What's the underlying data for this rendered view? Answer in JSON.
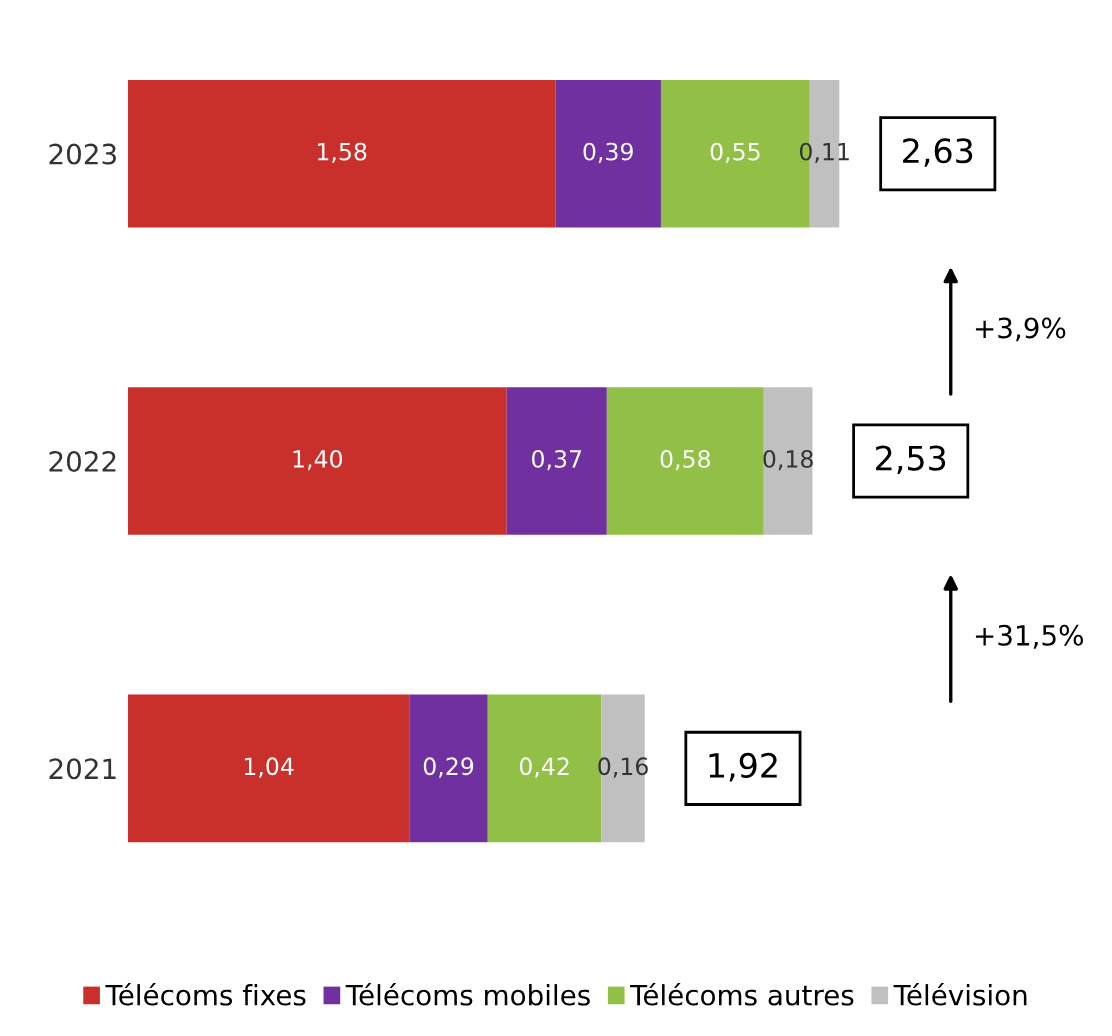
{
  "chart_data": {
    "type": "bar",
    "orientation": "horizontal",
    "stacked": true,
    "categories": [
      "2023",
      "2022",
      "2021"
    ],
    "series": [
      {
        "name": "Télécoms fixes",
        "color": "#c9302c",
        "values": [
          1.58,
          1.4,
          1.04
        ],
        "value_labels": [
          "1,58",
          "1,40",
          "1,04"
        ]
      },
      {
        "name": "Télécoms mobiles",
        "color": "#7030a0",
        "values": [
          0.39,
          0.37,
          0.29
        ],
        "value_labels": [
          "0,39",
          "0,37",
          "0,29"
        ]
      },
      {
        "name": "Télécoms autres",
        "color": "#92c047",
        "values": [
          0.55,
          0.58,
          0.42
        ],
        "value_labels": [
          "0,55",
          "0,58",
          "0,42"
        ]
      },
      {
        "name": "Télévision",
        "color": "#c0c0c0",
        "values": [
          0.11,
          0.18,
          0.16
        ],
        "value_labels": [
          "0,11",
          "0,18",
          "0,16"
        ]
      }
    ],
    "totals": [
      "2,63",
      "2,53",
      "1,92"
    ],
    "annotations": [
      "+3,9%",
      "+31,5%"
    ],
    "tick_labels": "y",
    "legend": "bottom"
  }
}
